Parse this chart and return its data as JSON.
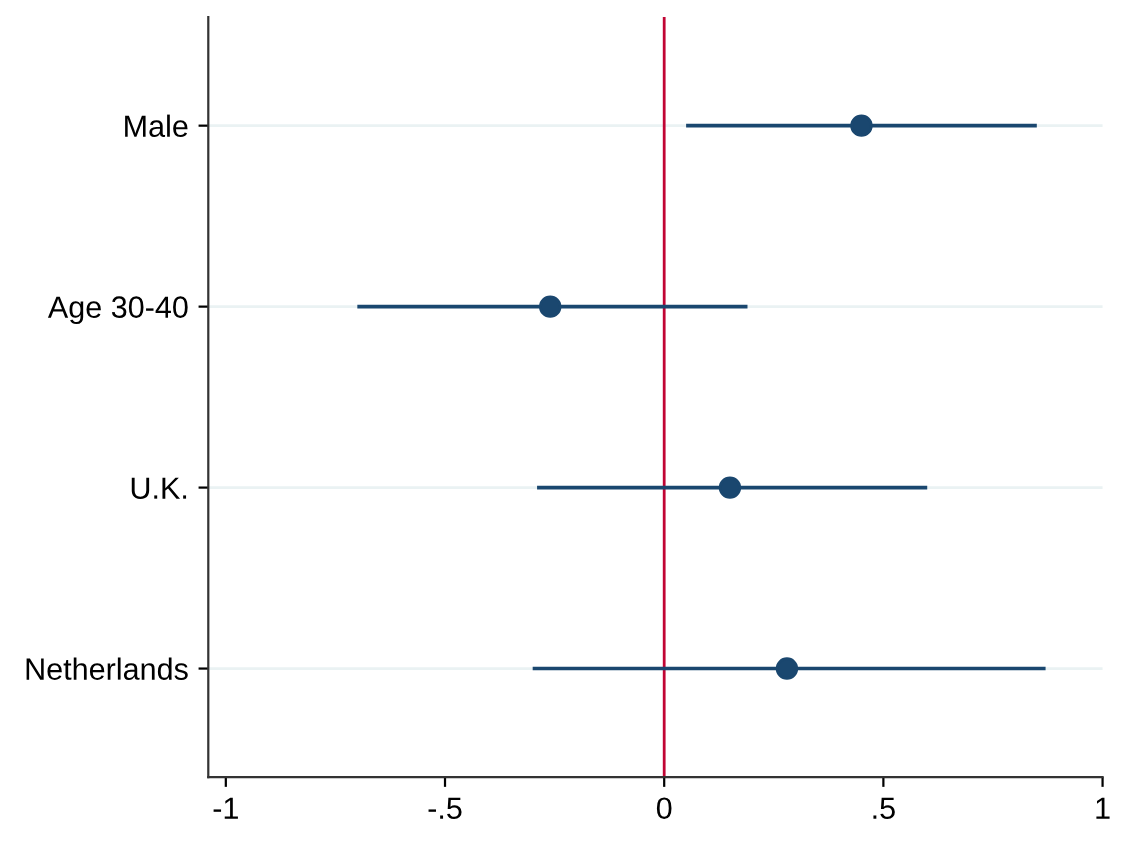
{
  "chart_data": {
    "type": "scatter",
    "orientation": "horizontal",
    "categories": [
      "Male",
      "Age 30-40",
      "U.K.",
      "Netherlands"
    ],
    "color": "#1a476f",
    "values": [
      0.45,
      -0.26,
      0.15,
      0.28
    ],
    "errors": [
      [
        0.05,
        0.85
      ],
      [
        -0.7,
        0.19
      ],
      [
        -0.29,
        0.6
      ],
      [
        -0.3,
        0.87
      ]
    ],
    "marker": "circle",
    "xlim": [
      -1.04,
      1.0
    ],
    "xticks": [
      {
        "value": -1,
        "label": "-1"
      },
      {
        "value": -0.5,
        "label": "-.5"
      },
      0,
      {
        "value": 0.5,
        "label": ".5"
      },
      1
    ],
    "grid": "y",
    "ref_lines": [
      {
        "axis": "x",
        "value": 0,
        "color": "#c10534"
      }
    ]
  }
}
